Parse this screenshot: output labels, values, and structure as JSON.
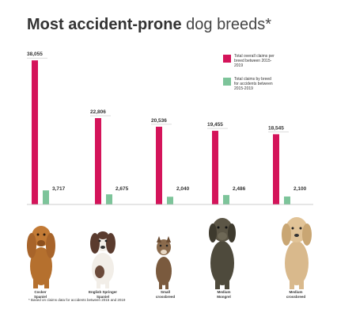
{
  "title_bold": "Most accident-prone",
  "title_light": "dog breeds*",
  "legend": [
    {
      "label": "Total overall claims per breed between 2015-2019",
      "color": "#d4145a"
    },
    {
      "label": "Total claims by breed for accidents between 2015-2019",
      "color": "#7dc49a"
    }
  ],
  "chart_data": {
    "type": "bar",
    "categories": [
      "Cocker Spaniel",
      "English Springer Spaniel",
      "Small crossbreed",
      "Medium Mongrel",
      "Medium crossbreed"
    ],
    "series": [
      {
        "name": "Total overall claims per breed between 2015-2019",
        "values": [
          38055,
          22806,
          20536,
          19455,
          18545
        ],
        "labels": [
          "38,055",
          "22,806",
          "20,536",
          "19,455",
          "18,545"
        ]
      },
      {
        "name": "Total claims by breed for accidents between 2015-2019",
        "values": [
          3717,
          2675,
          2040,
          2486,
          2100
        ],
        "labels": [
          "3,717",
          "2,675",
          "2,040",
          "2,486",
          "2,100"
        ]
      }
    ],
    "ylim": [
      0,
      40000
    ],
    "grid": false,
    "legend_position": "top-right"
  },
  "dog_labels": [
    [
      "Cocker",
      "Spaniel"
    ],
    [
      "English Springer",
      "Spaniel"
    ],
    [
      "Small",
      "crossbreed"
    ],
    [
      "Medium",
      "Mongrel"
    ],
    [
      "Medium",
      "crossbreed"
    ]
  ],
  "dog_icons": [
    "cocker-spaniel-icon",
    "springer-spaniel-icon",
    "small-crossbreed-icon",
    "medium-mongrel-icon",
    "medium-crossbreed-icon"
  ],
  "footnote": "* Based on claims data for accidents between 2015 and 2019"
}
